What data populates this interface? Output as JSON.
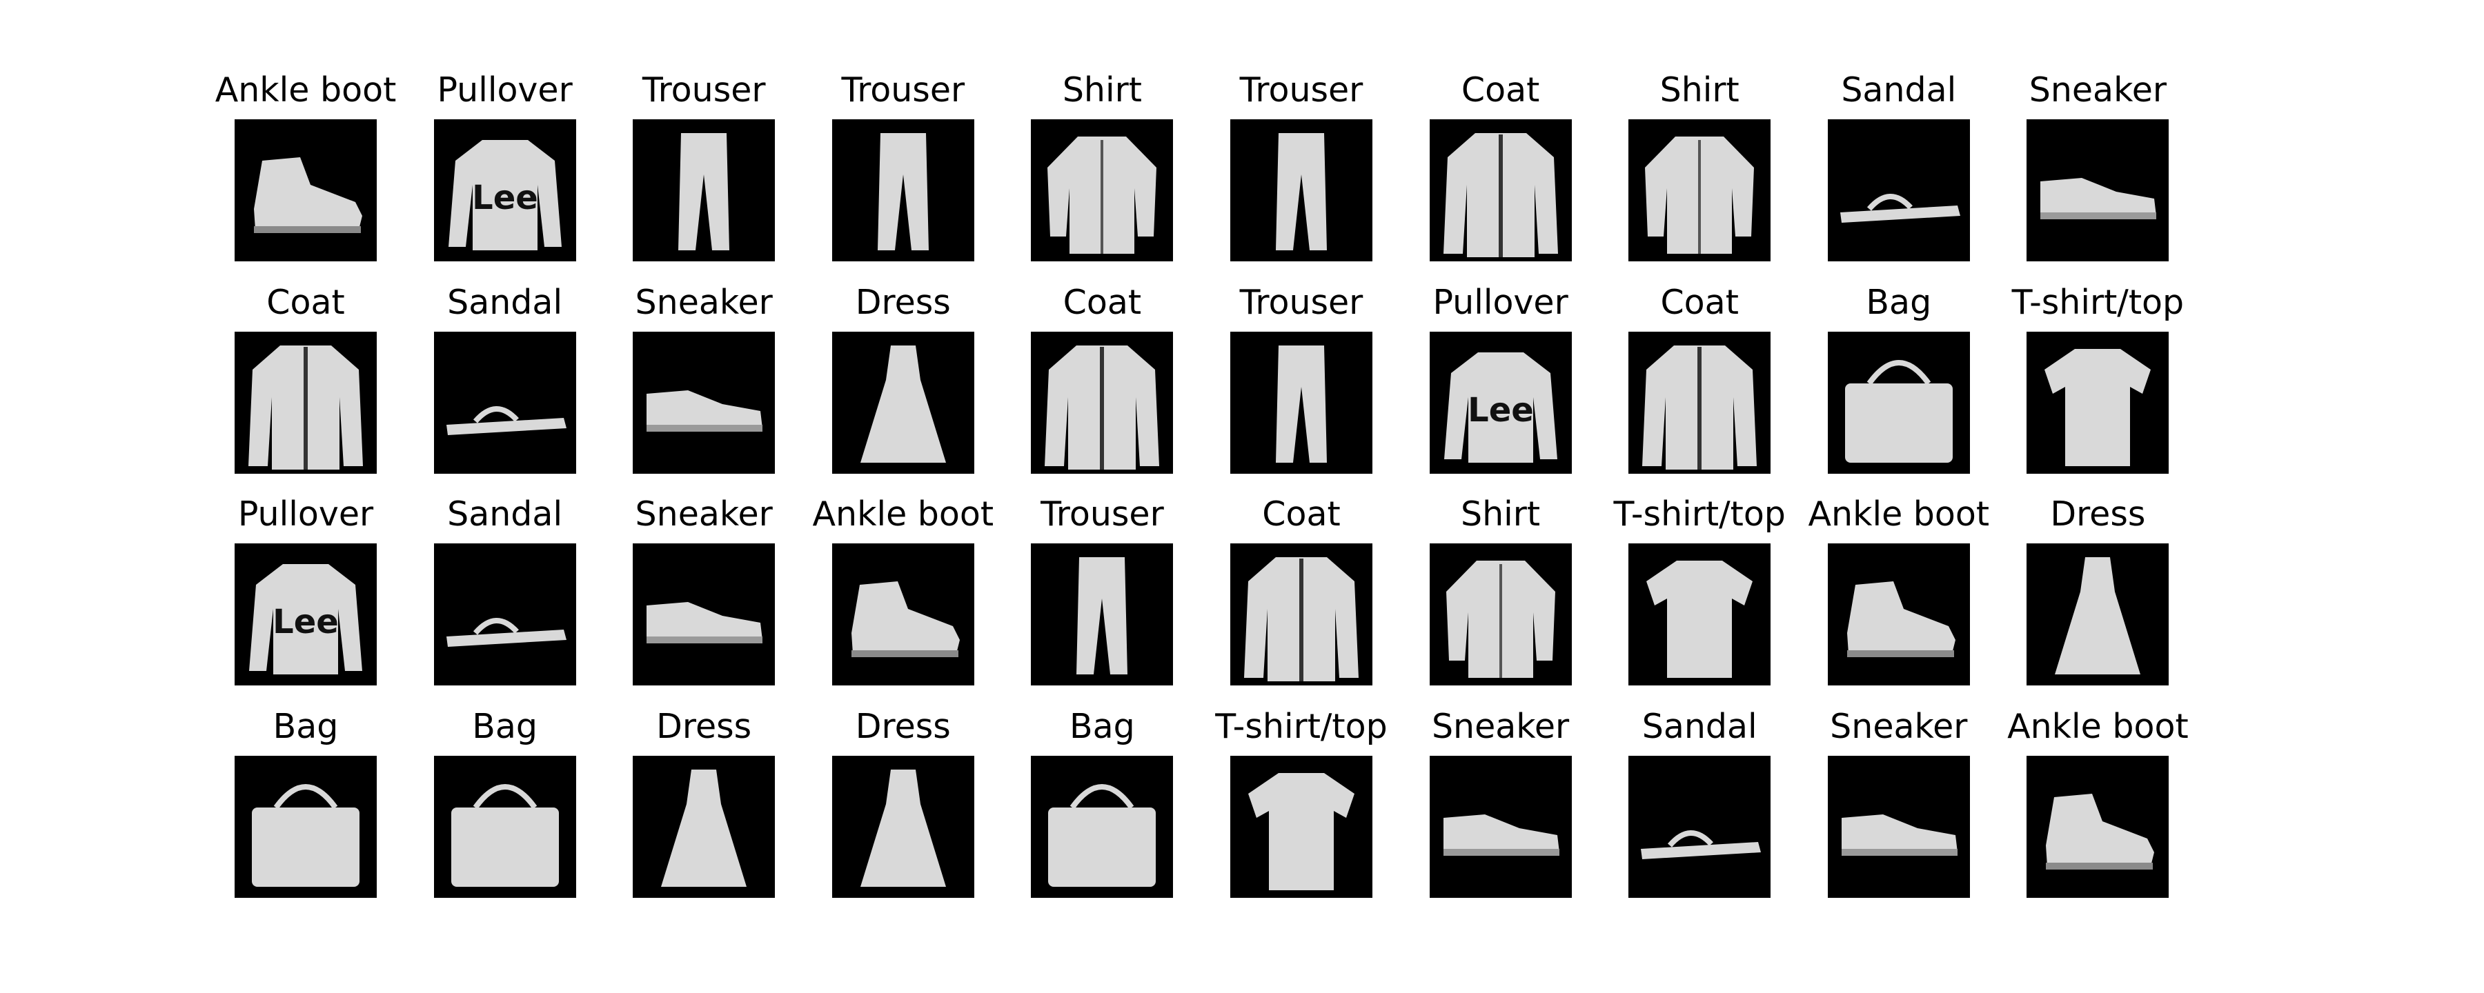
{
  "figure": {
    "grid": {
      "rows": 4,
      "cols": 10
    },
    "image_background": "#000000",
    "item_color": "#d9d9d9",
    "labels": [
      "Ankle boot",
      "Pullover",
      "Trouser",
      "Trouser",
      "Shirt",
      "Trouser",
      "Coat",
      "Shirt",
      "Sandal",
      "Sneaker",
      "Coat",
      "Sandal",
      "Sneaker",
      "Dress",
      "Coat",
      "Trouser",
      "Pullover",
      "Coat",
      "Bag",
      "T-shirt/top",
      "Pullover",
      "Sandal",
      "Sneaker",
      "Ankle boot",
      "Trouser",
      "Coat",
      "Shirt",
      "T-shirt/top",
      "Ankle boot",
      "Dress",
      "Bag",
      "Bag",
      "Dress",
      "Dress",
      "Bag",
      "T-shirt/top",
      "Sneaker",
      "Sandal",
      "Sneaker",
      "Ankle boot"
    ],
    "pullover_print": "Lee"
  }
}
